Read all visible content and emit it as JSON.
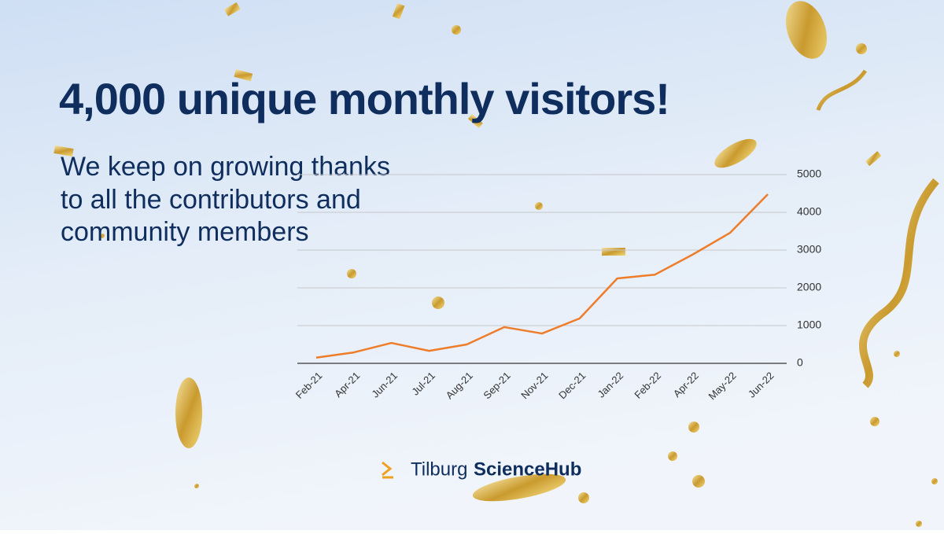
{
  "chart_data": {
    "type": "line",
    "title": "4,000 unique monthly visitors!",
    "subtitle": [
      "We keep on growing thanks",
      "to all the contributors and",
      "community members"
    ],
    "categories": [
      "Feb-21",
      "Apr-21",
      "Jun-21",
      "Jul-21",
      "Aug-21",
      "Sep-21",
      "Nov-21",
      "Dec-21",
      "Jan-22",
      "Feb-22",
      "Apr-22",
      "May-22",
      "Jun-22"
    ],
    "series": [
      {
        "color": "#ee7d2b",
        "values": [
          150,
          290,
          540,
          330,
          500,
          960,
          790,
          1190,
          2250,
          2350,
          2880,
          3460,
          4480
        ]
      }
    ],
    "ylim": [
      0,
      5000
    ],
    "yticks": [
      0,
      1000,
      2000,
      3000,
      4000,
      5000
    ],
    "grid": true
  },
  "logo": [
    "Tilburg",
    "ScienceHub"
  ]
}
